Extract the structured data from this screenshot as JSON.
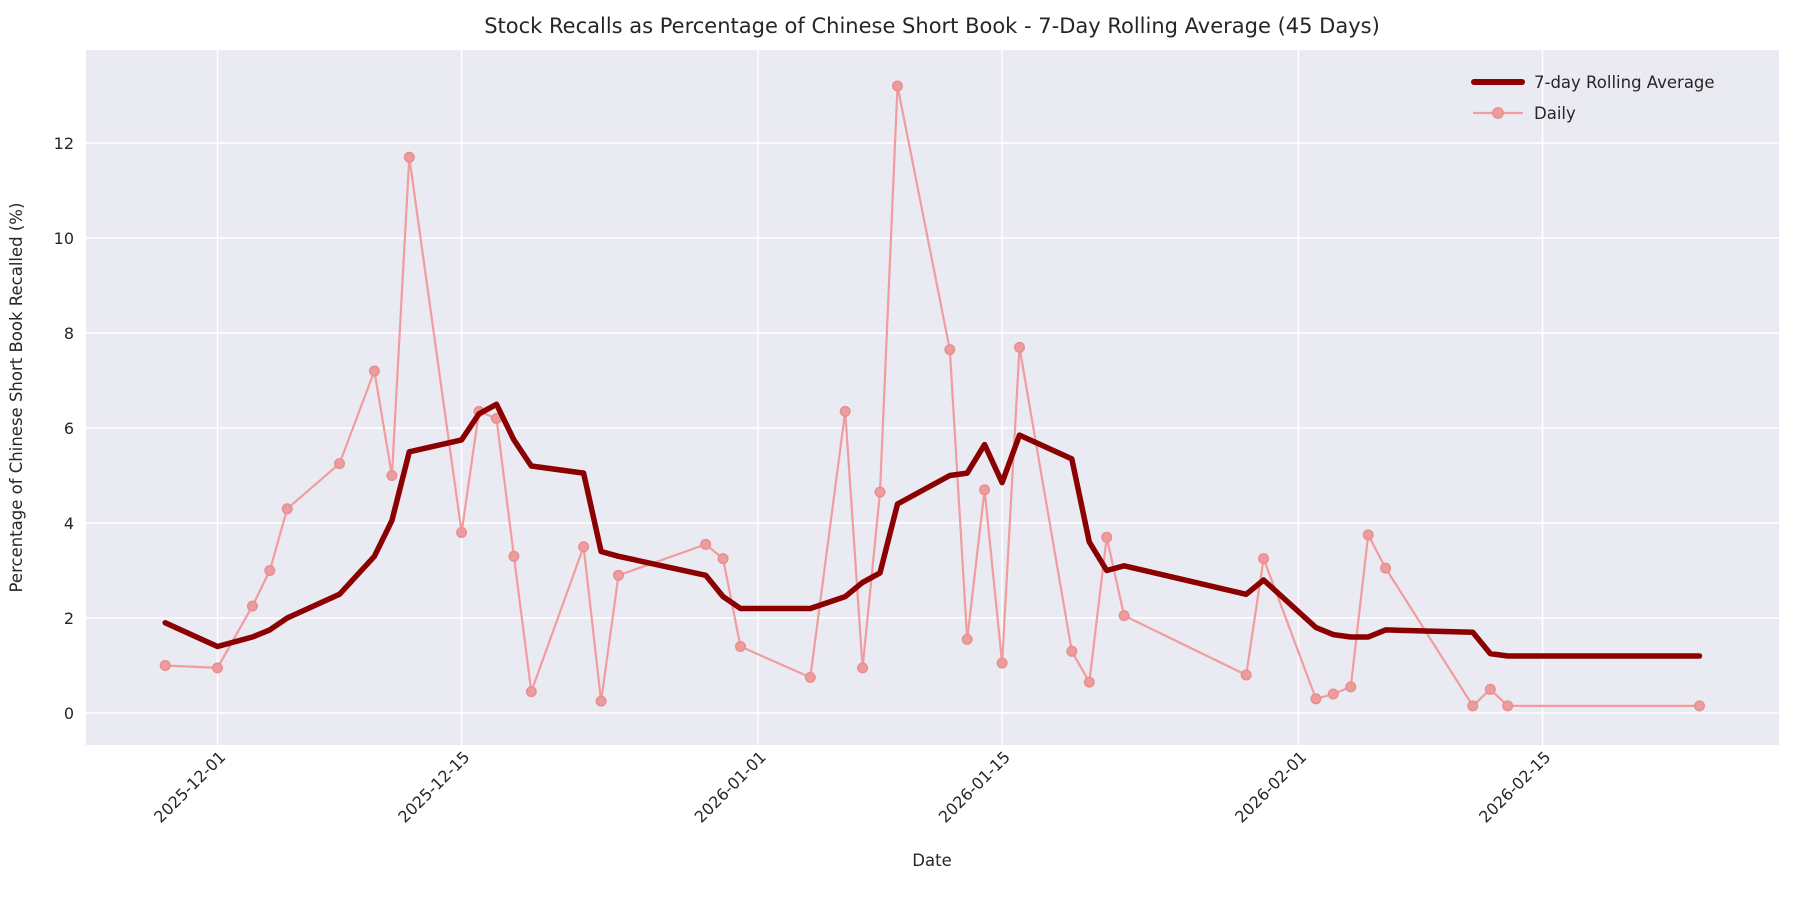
{
  "chart_data": {
    "type": "line",
    "title": "Stock Recalls as Percentage of Chinese Short Book - 7-Day Rolling Average (45 Days)",
    "xlabel": "Date",
    "ylabel": "Percentage of Chinese Short Book Recalled (%)",
    "plot_background": "#EAEAF2",
    "grid_color": "#FFFFFF",
    "text_color": "#262626",
    "legend_position": "upper-right",
    "y_ticks": [
      0,
      2,
      4,
      6,
      8,
      10,
      12
    ],
    "x_ticks": [
      "2025-12-01",
      "2025-12-15",
      "2026-01-01",
      "2026-01-15",
      "2026-02-01",
      "2026-02-15"
    ],
    "ylim": [
      -0.67,
      13.96
    ],
    "xlim_days_from_first_tick": [
      -7.54,
      89.6
    ],
    "x": [
      "2025-11-28",
      "2025-12-01",
      "2025-12-03",
      "2025-12-04",
      "2025-12-05",
      "2025-12-08",
      "2025-12-10",
      "2025-12-11",
      "2025-12-12",
      "2025-12-15",
      "2025-12-16",
      "2025-12-17",
      "2025-12-18",
      "2025-12-19",
      "2025-12-22",
      "2025-12-23",
      "2025-12-24",
      "2025-12-29",
      "2025-12-30",
      "2025-12-31",
      "2026-01-04",
      "2026-01-06",
      "2026-01-07",
      "2026-01-08",
      "2026-01-09",
      "2026-01-12",
      "2026-01-13",
      "2026-01-14",
      "2026-01-15",
      "2026-01-16",
      "2026-01-19",
      "2026-01-20",
      "2026-01-21",
      "2026-01-22",
      "2026-01-29",
      "2026-01-30",
      "2026-02-02",
      "2026-02-03",
      "2026-02-04",
      "2026-02-05",
      "2026-02-06",
      "2026-02-11",
      "2026-02-12",
      "2026-02-13",
      "2026-02-24"
    ],
    "series": [
      {
        "name": "7-day Rolling Average",
        "color": "#8B0000",
        "linewidth": 5.5,
        "marker": false,
        "values": [
          1.9,
          1.4,
          1.6,
          1.75,
          2.0,
          2.5,
          3.3,
          4.05,
          5.5,
          5.75,
          6.3,
          6.5,
          5.75,
          5.2,
          5.05,
          3.4,
          3.3,
          2.9,
          2.45,
          2.2,
          2.2,
          2.45,
          2.75,
          2.95,
          4.4,
          5.0,
          5.05,
          5.65,
          4.85,
          5.85,
          5.35,
          3.6,
          3.0,
          3.1,
          2.5,
          2.8,
          1.8,
          1.65,
          1.6,
          1.6,
          1.75,
          1.7,
          1.25,
          1.2,
          1.2
        ]
      },
      {
        "name": "Daily",
        "color": "#F19C9E",
        "linewidth": 2.2,
        "marker": true,
        "marker_fill": "#EE9B9D",
        "marker_edge": "#E68E90",
        "values": [
          1.0,
          0.95,
          2.25,
          3.0,
          4.3,
          5.25,
          7.2,
          5.0,
          11.7,
          3.8,
          6.35,
          6.2,
          3.3,
          0.45,
          3.5,
          0.25,
          2.9,
          3.55,
          3.25,
          1.4,
          0.75,
          6.35,
          0.95,
          4.65,
          13.2,
          7.65,
          1.55,
          4.7,
          1.05,
          7.7,
          1.3,
          0.65,
          3.7,
          2.05,
          0.8,
          3.25,
          0.3,
          0.4,
          0.55,
          3.75,
          3.05,
          0.15,
          0.5,
          0.15,
          0.15
        ]
      }
    ]
  }
}
